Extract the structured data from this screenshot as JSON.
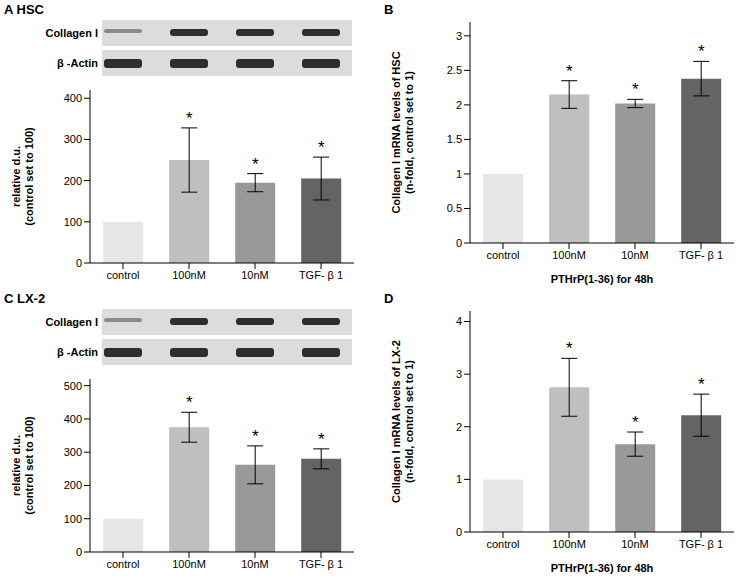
{
  "chart_data": [
    {
      "type": "bar",
      "title": "A HSC",
      "blot": [
        "Collagen I",
        "β -Actin"
      ],
      "categories": [
        "control",
        "100nM",
        "10nM",
        "TGF- β 1"
      ],
      "values": [
        100,
        250,
        195,
        205
      ],
      "errors": [
        0,
        78,
        22,
        52
      ],
      "significance": [
        null,
        "*",
        "*",
        "*"
      ],
      "colors": [
        "#e6e6e6",
        "#bfbfbf",
        "#999999",
        "#646464"
      ],
      "ylabel": [
        "relative d.u.",
        "(control set to 100)"
      ],
      "ylim": [
        0,
        420
      ],
      "yticks": [
        0,
        100,
        200,
        300,
        400
      ]
    },
    {
      "type": "bar",
      "title": "B",
      "categories": [
        "control",
        "100nM",
        "10nM",
        "TGF- β 1"
      ],
      "values": [
        1,
        2.15,
        2.02,
        2.38
      ],
      "errors": [
        0,
        0.2,
        0.06,
        0.25
      ],
      "significance": [
        null,
        "*",
        "*",
        "*"
      ],
      "colors": [
        "#e6e6e6",
        "#bfbfbf",
        "#999999",
        "#646464"
      ],
      "ylabel": [
        "Collagen I mRNA levels of HSC",
        "(n-fold, control set to 1)"
      ],
      "xlabel": "PTHrP(1-36) for 48h",
      "ylim": [
        0,
        3.2
      ],
      "yticks": [
        0,
        0.5,
        1,
        1.5,
        2,
        2.5,
        3
      ]
    },
    {
      "type": "bar",
      "title": "C LX-2",
      "blot": [
        "Collagen I",
        "β -Actin"
      ],
      "categories": [
        "control",
        "100nM",
        "10nM",
        "TGF- β 1"
      ],
      "values": [
        100,
        375,
        262,
        280
      ],
      "errors": [
        0,
        45,
        57,
        30
      ],
      "significance": [
        null,
        "*",
        "*",
        "*"
      ],
      "colors": [
        "#e6e6e6",
        "#bfbfbf",
        "#999999",
        "#646464"
      ],
      "ylabel": [
        "relative d.u.",
        "(control set to 100)"
      ],
      "ylim": [
        0,
        520
      ],
      "yticks": [
        0,
        100,
        200,
        300,
        400,
        500
      ]
    },
    {
      "type": "bar",
      "title": "D",
      "categories": [
        "control",
        "100nM",
        "10nM",
        "TGF- β 1"
      ],
      "values": [
        1,
        2.75,
        1.67,
        2.22
      ],
      "errors": [
        0,
        0.55,
        0.23,
        0.4
      ],
      "significance": [
        null,
        "*",
        "*",
        "*"
      ],
      "colors": [
        "#e6e6e6",
        "#bfbfbf",
        "#999999",
        "#646464"
      ],
      "ylabel": [
        "Collagen I mRNA levels of LX-2",
        "(n-fold, control set to 1)"
      ],
      "xlabel": "PTHrP(1-36) for 48h",
      "ylim": [
        0,
        4.2
      ],
      "yticks": [
        0,
        1,
        2,
        3,
        4
      ]
    }
  ]
}
